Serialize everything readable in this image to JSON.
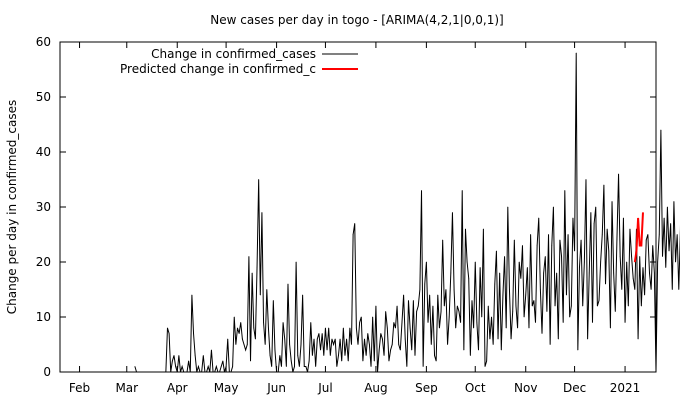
{
  "chart_data": {
    "type": "line",
    "title": "New cases per day in togo -  [ARIMA(4,2,1|0,0,1)]",
    "ylabel": "Change per day in confirmed_cases",
    "xlabel": "",
    "ylim": [
      0,
      60
    ],
    "yticks": [
      0,
      10,
      20,
      30,
      40,
      50,
      60
    ],
    "x_tick_labels": [
      {
        "label": "Feb",
        "date": "2020-02-01"
      },
      {
        "label": "Mar",
        "date": "2020-03-01"
      },
      {
        "label": "Apr",
        "date": "2020-04-01"
      },
      {
        "label": "May",
        "date": "2020-05-01"
      },
      {
        "label": "Jun",
        "date": "2020-06-01"
      },
      {
        "label": "Jul",
        "date": "2020-07-01"
      },
      {
        "label": "Aug",
        "date": "2020-08-01"
      },
      {
        "label": "Sep",
        "date": "2020-09-01"
      },
      {
        "label": "Oct",
        "date": "2020-10-01"
      },
      {
        "label": "Nov",
        "date": "2020-11-01"
      },
      {
        "label": "Dec",
        "date": "2020-12-01"
      },
      {
        "label": "2021",
        "date": "2021-01-01"
      }
    ],
    "xlim": [
      "2020-01-20",
      "2021-01-20"
    ],
    "grid": false,
    "legend_position": "top-left",
    "series": [
      {
        "name": "Change in confirmed_cases",
        "color": "#000000",
        "start_date": "2020-03-06",
        "values": [
          1,
          0,
          0,
          0,
          0,
          0,
          0,
          0,
          0,
          0,
          0,
          0,
          0,
          0,
          0,
          0,
          0,
          0,
          0,
          0,
          8,
          7,
          0,
          2,
          3,
          1,
          0,
          3,
          0,
          1,
          0,
          0,
          0,
          2,
          0,
          14,
          7,
          3,
          0,
          1,
          0,
          0,
          3,
          0,
          0,
          1,
          0,
          4,
          0,
          0,
          1,
          0,
          0,
          1,
          2,
          0,
          1,
          6,
          0,
          0,
          1,
          10,
          5,
          8,
          7,
          9,
          6,
          5,
          4,
          5,
          21,
          2,
          18,
          8,
          6,
          19,
          35,
          14,
          29,
          9,
          5,
          15,
          8,
          3,
          1,
          13,
          4,
          0,
          0,
          3,
          1,
          9,
          6,
          1,
          16,
          5,
          2,
          0,
          1,
          20,
          3,
          1,
          5,
          14,
          1,
          1,
          0,
          2,
          9,
          3,
          6,
          1,
          6,
          7,
          4,
          7,
          3,
          8,
          4,
          8,
          3,
          6,
          5,
          6,
          1,
          3,
          6,
          2,
          8,
          3,
          6,
          2,
          8,
          5,
          25,
          27,
          8,
          5,
          9,
          10,
          2,
          6,
          3,
          7,
          5,
          1,
          10,
          2,
          12,
          0,
          4,
          7,
          6,
          3,
          11,
          8,
          2,
          4,
          5,
          9,
          8,
          12,
          5,
          4,
          9,
          14,
          6,
          1,
          13,
          8,
          4,
          13,
          3,
          11,
          12,
          15,
          33,
          1,
          16,
          20,
          9,
          14,
          5,
          12,
          3,
          2,
          14,
          8,
          11,
          24,
          12,
          15,
          5,
          10,
          18,
          29,
          15,
          8,
          12,
          11,
          9,
          33,
          4,
          26,
          20,
          17,
          3,
          13,
          8,
          20,
          9,
          4,
          19,
          10,
          26,
          1,
          2,
          12,
          6,
          10,
          5,
          16,
          22,
          6,
          18,
          4,
          14,
          21,
          8,
          30,
          15,
          6,
          11,
          24,
          12,
          8,
          20,
          17,
          23,
          10,
          14,
          19,
          8,
          25,
          12,
          13,
          9,
          23,
          28,
          15,
          7,
          18,
          21,
          11,
          25,
          5,
          23,
          30,
          12,
          18,
          6,
          24,
          21,
          9,
          33,
          14,
          25,
          10,
          12,
          28,
          22,
          58,
          4,
          19,
          24,
          12,
          20,
          35,
          6,
          18,
          29,
          9,
          27,
          30,
          12,
          13,
          20,
          25,
          34,
          16,
          26,
          22,
          8,
          31,
          18,
          11,
          24,
          36,
          21,
          15,
          28,
          9,
          20,
          12,
          26,
          21,
          17,
          15,
          26,
          6,
          21,
          12,
          19,
          14,
          24,
          25,
          18,
          15,
          23,
          18,
          0,
          20,
          25,
          44,
          21,
          28,
          19,
          30,
          22,
          27,
          15,
          31,
          20,
          25,
          15,
          26,
          46,
          20,
          29,
          22,
          30,
          20,
          26,
          25,
          2,
          22,
          28,
          7,
          25,
          20,
          29,
          19,
          21,
          48
        ]
      },
      {
        "name": "Predicted change in confirmed_c",
        "color": "#ff0000",
        "start_date": "2021-01-07",
        "values": [
          20,
          22,
          28,
          23,
          23,
          29
        ]
      }
    ]
  }
}
